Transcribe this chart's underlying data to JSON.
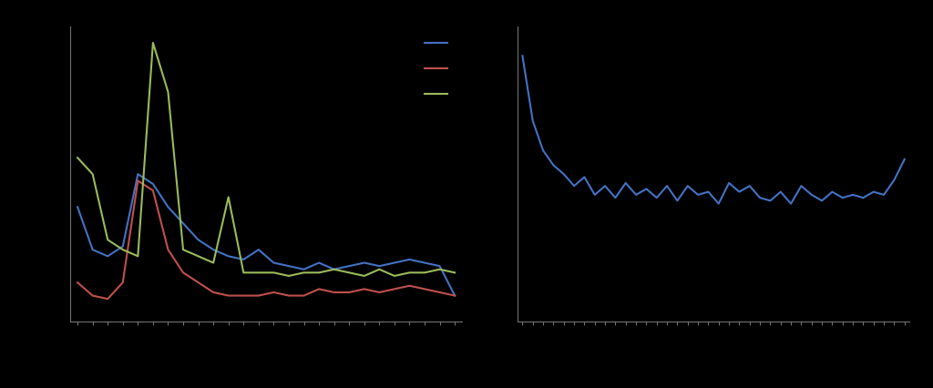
{
  "background_color": "#000000",
  "axes_bg_color": "#000000",
  "line_color_blue": "#4472C4",
  "line_color_red": "#C0504D",
  "line_color_green": "#9BBB59",
  "spine_color": "#707070",
  "tick_color": "#707070",
  "chart1_blue": [
    3.5,
    2.2,
    2.0,
    2.3,
    4.5,
    4.2,
    3.5,
    3.0,
    2.5,
    2.2,
    2.0,
    1.9,
    2.2,
    1.8,
    1.7,
    1.6,
    1.8,
    1.6,
    1.7,
    1.8,
    1.7,
    1.8,
    1.9,
    1.8,
    1.7,
    0.8
  ],
  "chart1_red": [
    1.2,
    0.8,
    0.7,
    1.2,
    4.3,
    4.0,
    2.2,
    1.5,
    1.2,
    0.9,
    0.8,
    0.8,
    0.8,
    0.9,
    0.8,
    0.8,
    1.0,
    0.9,
    0.9,
    1.0,
    0.9,
    1.0,
    1.1,
    1.0,
    0.9,
    0.8
  ],
  "chart1_green": [
    5.0,
    4.5,
    2.5,
    2.2,
    2.0,
    8.5,
    7.0,
    2.2,
    2.0,
    1.8,
    3.8,
    1.5,
    1.5,
    1.5,
    1.4,
    1.5,
    1.5,
    1.6,
    1.5,
    1.4,
    1.6,
    1.4,
    1.5,
    1.5,
    1.6,
    1.5
  ],
  "chart2_blue": [
    9.0,
    6.8,
    5.8,
    5.3,
    5.0,
    4.6,
    4.9,
    4.3,
    4.6,
    4.2,
    4.7,
    4.3,
    4.5,
    4.2,
    4.6,
    4.1,
    4.6,
    4.3,
    4.4,
    4.0,
    4.7,
    4.4,
    4.6,
    4.2,
    4.1,
    4.4,
    4.0,
    4.6,
    4.3,
    4.1,
    4.4,
    4.2,
    4.3,
    4.2,
    4.4,
    4.3,
    4.8,
    5.5
  ],
  "chart1_n_ticks": 26,
  "chart2_n_ticks": 38,
  "chart1_ylim": [
    0,
    9
  ],
  "chart2_ylim": [
    0,
    10
  ],
  "legend_labels": [
    "",
    "",
    ""
  ],
  "linewidth": 1.5
}
